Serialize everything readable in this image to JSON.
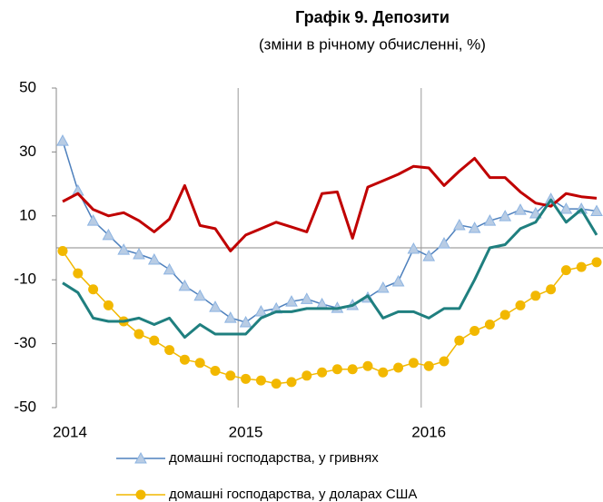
{
  "chart_data": {
    "type": "line",
    "title": "Графік 9. Депозити",
    "subtitle": "(зміни в річному обчисленні, %)",
    "categories": [
      "2014",
      null,
      null,
      null,
      null,
      null,
      null,
      null,
      null,
      null,
      null,
      null,
      "2015",
      null,
      null,
      null,
      null,
      null,
      null,
      null,
      null,
      null,
      null,
      null,
      "2016",
      null,
      null,
      null,
      null,
      null,
      null,
      null,
      null,
      null,
      null,
      null
    ],
    "ylim": [
      -50,
      50
    ],
    "yticks": [
      -50,
      -30,
      -10,
      10,
      30,
      50
    ],
    "series": [
      {
        "name": "домашні господарства, у гривнях",
        "color": "#4f81bd",
        "marker": "triangle",
        "values": [
          33.5,
          17.9,
          8.5,
          4,
          -0.6,
          -2,
          -3.7,
          -6.8,
          -11.9,
          -15,
          -18.5,
          -21.9,
          -23.3,
          -19.9,
          -19,
          -16.8,
          -16,
          -17.6,
          -18.8,
          -17.9,
          -15.6,
          -12.5,
          -10.5,
          -0.3,
          -2.6,
          1.4,
          7.1,
          6.2,
          8.5,
          9.9,
          11.9,
          10.8,
          15.3,
          12.2,
          12.2,
          11.5
        ]
      },
      {
        "name": "домашні господарства, у доларах США",
        "color": "#f2b800",
        "marker": "circle",
        "values": [
          -1,
          -8,
          -13,
          -18,
          -23,
          -27,
          -29,
          -32,
          -35,
          -36,
          -38.5,
          -40,
          -41,
          -41.5,
          -42.5,
          -42,
          -40,
          -39,
          -38,
          -38,
          -37,
          -39,
          -37.5,
          -36,
          -37,
          -35.5,
          -29,
          -26,
          -24,
          -21,
          -18,
          -15,
          -13,
          -7,
          -6,
          -4.5
        ]
      },
      {
        "color": "#c00000",
        "values": [
          14.5,
          17,
          12,
          10,
          11,
          8.5,
          5,
          9,
          19.5,
          7,
          6,
          -1,
          4,
          6,
          8,
          6.5,
          5,
          17,
          17.5,
          3,
          19,
          21,
          23,
          25.5,
          25,
          19.5,
          24,
          28,
          22,
          22,
          17.5,
          14,
          13,
          17,
          16,
          15.5
        ]
      },
      {
        "color": "#1f7f7f",
        "values": [
          -11,
          -14,
          -22,
          -23,
          -23,
          -22,
          -24,
          -22,
          -28,
          -24,
          -27,
          -27,
          -27,
          -22,
          -20,
          -20,
          -19,
          -19,
          -19,
          -18,
          -15,
          -22,
          -20,
          -20,
          -22,
          -19,
          -19,
          -10,
          0,
          1,
          6,
          8,
          15,
          8,
          12,
          4
        ]
      }
    ]
  }
}
